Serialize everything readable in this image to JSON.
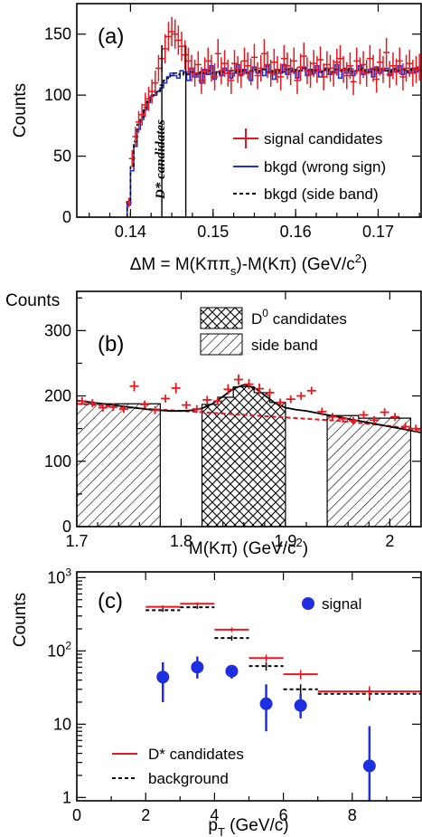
{
  "colors": {
    "signal": "#e8171d",
    "wrong_sign": "#1e2fe0",
    "side_band": "#000000",
    "fit": "#000000",
    "background_fit": "#e8171d",
    "points": "#1e2fe0"
  },
  "chart_data": [
    {
      "panel": "(a)",
      "type": "line",
      "xlabel_parts": [
        "ΔM = M(Kππ",
        "s",
        ")-M(Kπ) (GeV/c",
        "2",
        ")"
      ],
      "ylabel": "Counts",
      "xlim": [
        0.1335,
        0.1752
      ],
      "ylim": [
        0,
        175
      ],
      "x_ticks": [
        0.14,
        0.15,
        0.16,
        0.17
      ],
      "x_tick_labels": [
        "0.14",
        "0.15",
        "0.16",
        "0.17"
      ],
      "y_ticks": [
        0,
        50,
        100,
        150
      ],
      "y_tick_labels": [
        "0",
        "50",
        "100",
        "150"
      ],
      "window_lines": [
        0.1438,
        0.1467
      ],
      "window_label": "D* candidates",
      "legend": {
        "position": "bottom-right",
        "entries": [
          "signal candidates",
          "bkgd (wrong sign)",
          "bkgd (side band)"
        ]
      },
      "series": [
        {
          "name": "signal candidates",
          "style": "points-with-errors",
          "x": [
            0.1398,
            0.1402,
            0.1406,
            0.141,
            0.1414,
            0.1418,
            0.1422,
            0.1426,
            0.143,
            0.1434,
            0.1438,
            0.1442,
            0.1446,
            0.145,
            0.1454,
            0.1458,
            0.1462,
            0.1466,
            0.147,
            0.1474,
            0.1478,
            0.1482,
            0.1486,
            0.149,
            0.1494,
            0.1498,
            0.1502,
            0.1506,
            0.151,
            0.1514,
            0.1518,
            0.1522,
            0.1526,
            0.153,
            0.1534,
            0.1538,
            0.1542,
            0.1546,
            0.155,
            0.1554,
            0.1558,
            0.1562,
            0.1566,
            0.157,
            0.1574,
            0.1578,
            0.1582,
            0.1586,
            0.159,
            0.1594,
            0.1598,
            0.1602,
            0.1606,
            0.161,
            0.1614,
            0.1618,
            0.1622,
            0.1626,
            0.163,
            0.1634,
            0.1638,
            0.1642,
            0.1646,
            0.165,
            0.1654,
            0.1658,
            0.1662,
            0.1666,
            0.167,
            0.1674,
            0.1678,
            0.1682,
            0.1686,
            0.169,
            0.1694,
            0.1698,
            0.1702,
            0.1706,
            0.171,
            0.1714,
            0.1718,
            0.1722,
            0.1726,
            0.173,
            0.1734,
            0.1738,
            0.1742,
            0.1746,
            0.175
          ],
          "y": [
            12,
            48,
            66,
            78,
            84,
            92,
            97,
            103,
            110,
            122,
            130,
            138,
            148,
            152,
            150,
            145,
            140,
            133,
            128,
            122,
            118,
            125,
            112,
            120,
            128,
            122,
            115,
            134,
            120,
            126,
            118,
            112,
            126,
            121,
            117,
            128,
            124,
            119,
            131,
            116,
            122,
            134,
            125,
            118,
            127,
            121,
            115,
            130,
            124,
            119,
            128,
            112,
            123,
            132,
            120,
            117,
            126,
            121,
            129,
            115,
            125,
            122,
            118,
            127,
            130,
            121,
            116,
            124,
            111,
            128,
            120,
            125,
            118,
            130,
            122,
            113,
            127,
            121,
            135,
            117,
            124,
            119,
            128,
            115,
            122,
            126,
            118,
            121,
            123
          ],
          "errors": [
            4,
            7,
            8,
            9,
            9,
            10,
            10,
            10,
            10,
            11,
            11,
            12,
            12,
            12,
            12,
            12,
            12,
            12,
            11,
            11,
            11,
            11,
            11,
            11,
            11,
            11,
            11,
            12,
            11,
            11,
            11,
            11,
            11,
            11,
            11,
            11,
            11,
            11,
            11,
            11,
            11,
            12,
            11,
            11,
            11,
            11,
            11,
            11,
            11,
            11,
            11,
            11,
            11,
            11,
            11,
            11,
            11,
            11,
            11,
            11,
            11,
            11,
            11,
            11,
            11,
            11,
            11,
            11,
            11,
            11,
            11,
            11,
            11,
            11,
            11,
            11,
            11,
            11,
            12,
            11,
            11,
            11,
            11,
            11,
            11,
            11,
            11,
            11,
            11
          ]
        },
        {
          "name": "bkgd (wrong sign)",
          "style": "histogram",
          "x_edges_start": 0.1396,
          "bin_width": 0.0004,
          "values": [
            10,
            38,
            58,
            72,
            80,
            88,
            94,
            99,
            100,
            103,
            106,
            110,
            115,
            118,
            116,
            114,
            120,
            119,
            112,
            122,
            115,
            118,
            110,
            121,
            117,
            124,
            113,
            119,
            116,
            122,
            120,
            114,
            118,
            125,
            116,
            121,
            119,
            112,
            123,
            118,
            120,
            116,
            124,
            119,
            113,
            121,
            118,
            125,
            117,
            122,
            119,
            114,
            120,
            123,
            116,
            121,
            118,
            124,
            115,
            120,
            122,
            117,
            119,
            125,
            114,
            121,
            118,
            122,
            116,
            120,
            124,
            117,
            119,
            121,
            115,
            123,
            118,
            120,
            122,
            116,
            121,
            119,
            124,
            117,
            120,
            118,
            122,
            119,
            121,
            120
          ]
        },
        {
          "name": "bkgd (side band)",
          "style": "dashed-histogram",
          "x_edges_start": 0.1396,
          "bin_width": 0.0004,
          "values": [
            14,
            42,
            62,
            76,
            82,
            90,
            95,
            100,
            102,
            104,
            108,
            112,
            114,
            116,
            118,
            117,
            116,
            118,
            117,
            119,
            118,
            117,
            119,
            118,
            120,
            118,
            119,
            117,
            120,
            119,
            118,
            120,
            119,
            121,
            119,
            120,
            118,
            120,
            121,
            119,
            120,
            121,
            119,
            120,
            118,
            121,
            120,
            119,
            121,
            120,
            119,
            121,
            120,
            122,
            120,
            119,
            121,
            120,
            119,
            121,
            122,
            120,
            119,
            121,
            120,
            122,
            120,
            121,
            119,
            120,
            121,
            122,
            120,
            119,
            121,
            120,
            122,
            121,
            120,
            119,
            121,
            122,
            120,
            121,
            119,
            120,
            121,
            122,
            120,
            121
          ]
        }
      ]
    },
    {
      "panel": "(b)",
      "type": "line",
      "xlabel_parts": [
        "M(Kπ) (GeV/c",
        "2",
        ")"
      ],
      "ylabel": "Counts",
      "xlim": [
        1.7,
        2.03
      ],
      "ylim": [
        0,
        360
      ],
      "x_ticks": [
        1.7,
        1.8,
        1.9,
        2.0
      ],
      "x_tick_labels": [
        "1.7",
        "1.8",
        "1.9",
        "2"
      ],
      "y_ticks": [
        0,
        100,
        200,
        300
      ],
      "y_tick_labels": [
        "0",
        "100",
        "200",
        "300"
      ],
      "legend": {
        "position": "top-right",
        "entries": [
          "D⁰ candidates",
          "side band"
        ],
        "entry_parts": [
          [
            "D",
            "0",
            " candidates"
          ],
          [
            "side band"
          ]
        ]
      },
      "side_band_regions": [
        [
          1.7,
          1.78
        ],
        [
          1.94,
          2.02
        ]
      ],
      "candidate_region": [
        1.82,
        1.9
      ],
      "series": [
        {
          "name": "data",
          "style": "points-with-errors",
          "x": [
            1.705,
            1.715,
            1.725,
            1.735,
            1.745,
            1.755,
            1.765,
            1.775,
            1.785,
            1.795,
            1.805,
            1.815,
            1.825,
            1.835,
            1.845,
            1.855,
            1.865,
            1.875,
            1.885,
            1.895,
            1.905,
            1.915,
            1.925,
            1.935,
            1.945,
            1.955,
            1.965,
            1.975,
            1.985,
            1.995,
            2.005,
            2.015,
            2.025
          ],
          "y": [
            192,
            189,
            182,
            183,
            180,
            215,
            187,
            178,
            196,
            212,
            186,
            180,
            194,
            192,
            210,
            225,
            218,
            211,
            205,
            190,
            195,
            200,
            208,
            176,
            168,
            165,
            162,
            171,
            163,
            175,
            168,
            153,
            150
          ],
          "errors": [
            6,
            6,
            6,
            6,
            6,
            8,
            6,
            6,
            6,
            8,
            6,
            6,
            6,
            6,
            8,
            8,
            8,
            8,
            6,
            6,
            6,
            6,
            6,
            6,
            6,
            6,
            6,
            6,
            6,
            6,
            6,
            6,
            6
          ]
        },
        {
          "name": "fit",
          "style": "line",
          "x": [
            1.7,
            1.71,
            1.72,
            1.73,
            1.74,
            1.75,
            1.76,
            1.77,
            1.78,
            1.79,
            1.8,
            1.81,
            1.82,
            1.83,
            1.84,
            1.85,
            1.86,
            1.87,
            1.88,
            1.89,
            1.9,
            1.91,
            1.92,
            1.93,
            1.94,
            1.95,
            1.96,
            1.97,
            1.98,
            1.99,
            2.0,
            2.01,
            2.02,
            2.03
          ],
          "y": [
            193,
            191,
            189,
            187,
            185,
            183,
            181,
            179,
            178,
            177,
            177,
            178,
            181,
            188,
            199,
            211,
            217,
            213,
            201,
            189,
            182,
            179,
            177,
            174,
            171,
            168,
            165,
            162,
            159,
            156,
            153,
            150,
            147,
            144
          ]
        },
        {
          "name": "background",
          "style": "dashed-line",
          "x": [
            1.7,
            1.75,
            1.8,
            1.85,
            1.9,
            1.95,
            2.0,
            2.03
          ],
          "y": [
            188,
            182,
            177,
            172,
            167,
            162,
            154,
            148
          ]
        },
        {
          "name": "side band",
          "style": "hatched-histogram",
          "bins": [
            [
              1.7,
              1.75,
              188
            ],
            [
              1.75,
              1.78,
              188
            ],
            [
              1.94,
              1.97,
              170
            ],
            [
              1.97,
              2.02,
              166
            ]
          ]
        },
        {
          "name": "D0 candidates",
          "style": "crosshatched-histogram",
          "bins": [
            [
              1.82,
              1.835,
              187
            ],
            [
              1.835,
              1.85,
              198
            ],
            [
              1.85,
              1.87,
              214
            ],
            [
              1.87,
              1.885,
              205
            ],
            [
              1.885,
              1.9,
              190
            ]
          ]
        }
      ]
    },
    {
      "panel": "(c)",
      "type": "scatter",
      "xlabel_parts": [
        "p",
        "T",
        " (GeV/c)"
      ],
      "ylabel": "Counts",
      "log_y": true,
      "xlim": [
        0,
        10
      ],
      "ylim": [
        0.9,
        1200
      ],
      "x_ticks": [
        0,
        2,
        4,
        6,
        8
      ],
      "x_tick_labels": [
        "0",
        "2",
        "4",
        "6",
        "8"
      ],
      "y_ticks": [
        1,
        10,
        100,
        1000
      ],
      "y_tick_labels": [
        "1",
        "10",
        "10²",
        "10³"
      ],
      "y_tick_parts": [
        [
          "1",
          ""
        ],
        [
          "10",
          ""
        ],
        [
          "10",
          "2"
        ],
        [
          "10",
          "3"
        ]
      ],
      "legend": {
        "entries": [
          "signal",
          "D* candidates",
          "background"
        ]
      },
      "series": [
        {
          "name": "signal",
          "style": "markers",
          "x": [
            2.5,
            3.5,
            4.5,
            5.5,
            6.5,
            8.5
          ],
          "y": [
            44,
            60,
            53,
            19,
            18,
            2.7
          ],
          "err_low": [
            24,
            18,
            11,
            11,
            6,
            2.5
          ],
          "err_high": [
            26,
            24,
            10,
            16,
            8,
            6.7
          ]
        },
        {
          "name": "D* candidates",
          "style": "horizontal-bars",
          "x_low": [
            2,
            3,
            4,
            5,
            6,
            7
          ],
          "x_high": [
            3,
            4,
            5,
            6,
            7,
            10
          ],
          "y": [
            400,
            440,
            195,
            80,
            48,
            28
          ],
          "err": [
            20,
            21,
            14,
            9,
            7,
            5
          ]
        },
        {
          "name": "background",
          "style": "dashed-horizontal-bars",
          "x_low": [
            2,
            3,
            4,
            5,
            6,
            7
          ],
          "x_high": [
            3,
            4,
            5,
            6,
            7,
            10
          ],
          "y": [
            360,
            395,
            150,
            62,
            30,
            26
          ],
          "err": [
            19,
            20,
            12,
            8,
            5,
            5
          ]
        }
      ]
    }
  ]
}
